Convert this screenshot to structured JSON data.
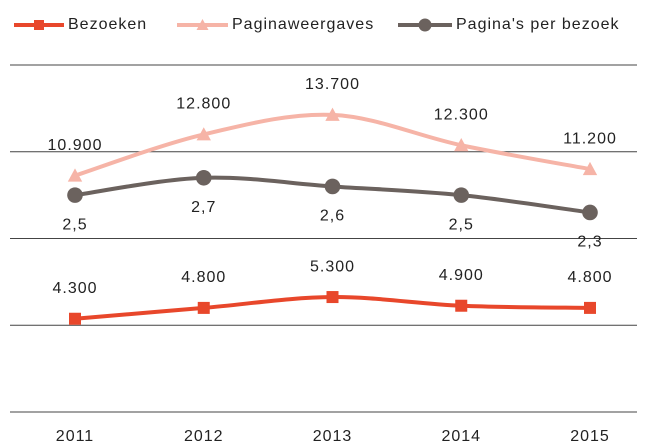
{
  "chart_data": {
    "type": "line",
    "categories": [
      "2011",
      "2012",
      "2013",
      "2014",
      "2015"
    ],
    "ylim": [
      0,
      16000
    ],
    "yticks": [
      0,
      4000,
      8000,
      12000,
      16000
    ],
    "y2lim": [
      0,
      4
    ],
    "grid": true,
    "legend": "top",
    "series": [
      {
        "name": "Bezoeken",
        "color": "#e8472b",
        "marker": "square",
        "label_position": "above",
        "values": [
          4300,
          4800,
          5300,
          4900,
          4800
        ],
        "value_labels": [
          "4.300",
          "4.800",
          "5.300",
          "4.900",
          "4.800"
        ]
      },
      {
        "name": "Paginaweergaves",
        "color": "#f6b4a7",
        "marker": "triangle",
        "label_position": "above",
        "values": [
          10900,
          12800,
          13700,
          12300,
          11200
        ],
        "value_labels": [
          "10.900",
          "12.800",
          "13.700",
          "12.300",
          "11.200"
        ]
      },
      {
        "name": "Pagina's per bezoek",
        "color": "#6b625e",
        "marker": "circle",
        "label_position": "below",
        "axis": "y2",
        "values": [
          2.5,
          2.7,
          2.6,
          2.5,
          2.3
        ],
        "value_labels": [
          "2,5",
          "2,7",
          "2,6",
          "2,5",
          "2,3"
        ]
      }
    ]
  }
}
